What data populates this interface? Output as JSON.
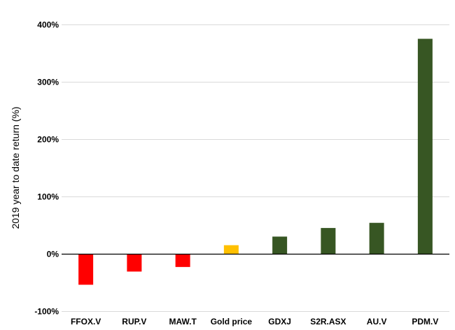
{
  "chart_data": {
    "type": "bar",
    "title": "",
    "xlabel": "",
    "ylabel": "2019 year to date return (%)",
    "ylim": [
      -100,
      400
    ],
    "yticks": [
      -100,
      0,
      100,
      200,
      300,
      400
    ],
    "ytick_labels": [
      "-100%",
      "0%",
      "100%",
      "200%",
      "300%",
      "400%"
    ],
    "grid": true,
    "legend": "none",
    "categories": [
      "FFOX.V",
      "RUP.V",
      "MAW.T",
      "Gold price",
      "GDXJ",
      "S2R.ASX",
      "AU.V",
      "PDM.V"
    ],
    "values": [
      -54,
      -31,
      -23,
      15,
      30,
      45,
      54,
      375
    ],
    "colors": [
      "#ff0000",
      "#ff0000",
      "#ff0000",
      "#ffc000",
      "#375623",
      "#375623",
      "#375623",
      "#375623"
    ]
  }
}
